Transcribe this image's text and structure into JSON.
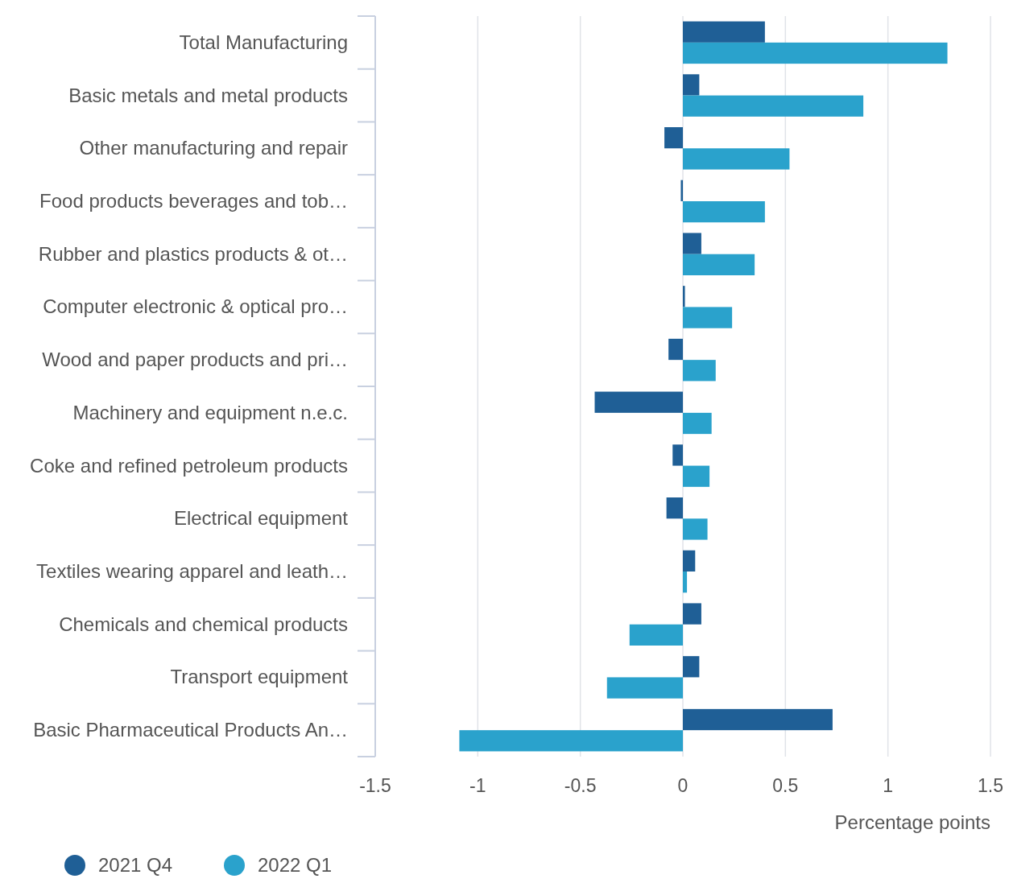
{
  "chart_data": {
    "type": "bar",
    "orientation": "horizontal",
    "xlabel": "Percentage points",
    "categories": [
      "Total Manufacturing",
      "Basic metals and metal products",
      "Other manufacturing and repair",
      "Food products beverages and tob…",
      "Rubber and plastics products & ot…",
      "Computer electronic & optical pro…",
      "Wood and paper products and pri…",
      "Machinery and equipment n.e.c.",
      "Coke and refined petroleum products",
      "Electrical equipment",
      "Textiles wearing apparel and leath…",
      "Chemicals and chemical products",
      "Transport equipment",
      "Basic Pharmaceutical Products An…"
    ],
    "series": [
      {
        "name": "2021 Q4",
        "color": "#1f5f96",
        "values": [
          0.4,
          0.08,
          -0.09,
          -0.01,
          0.09,
          0.01,
          -0.07,
          -0.43,
          -0.05,
          -0.08,
          0.06,
          0.09,
          0.08,
          0.73
        ]
      },
      {
        "name": "2022 Q1",
        "color": "#2aa2cc",
        "values": [
          1.29,
          0.88,
          0.52,
          0.4,
          0.35,
          0.24,
          0.16,
          0.14,
          0.13,
          0.12,
          0.02,
          -0.26,
          -0.37,
          -1.09
        ]
      }
    ],
    "xlim": [
      -1.5,
      1.5
    ],
    "xticks": [
      -1.5,
      -1,
      -0.5,
      0,
      0.5,
      1,
      1.5
    ],
    "grid": "x",
    "legend": "bottom left"
  }
}
